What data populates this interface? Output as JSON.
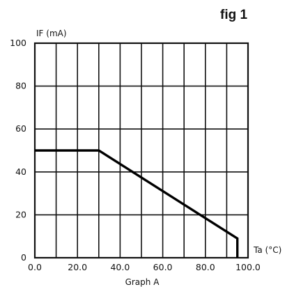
{
  "figure": {
    "title": "fig 1",
    "caption": "Graph A"
  },
  "chart_data": {
    "type": "line",
    "title": "fig 1",
    "xlabel": "Ta (°C)",
    "ylabel": "IF (mA)",
    "caption": "Graph A",
    "xlim": [
      0,
      100
    ],
    "ylim": [
      0,
      100
    ],
    "x_ticks": [
      "0.0",
      "20.0",
      "40.0",
      "60.0",
      "80.0",
      "100.0"
    ],
    "y_ticks": [
      "0",
      "20",
      "40",
      "60",
      "80",
      "100"
    ],
    "grid": true,
    "legend": "none",
    "line_color": "#000000",
    "series": [
      {
        "x": [
          0,
          30,
          95,
          95
        ],
        "y": [
          50,
          50,
          9,
          0
        ]
      }
    ]
  }
}
